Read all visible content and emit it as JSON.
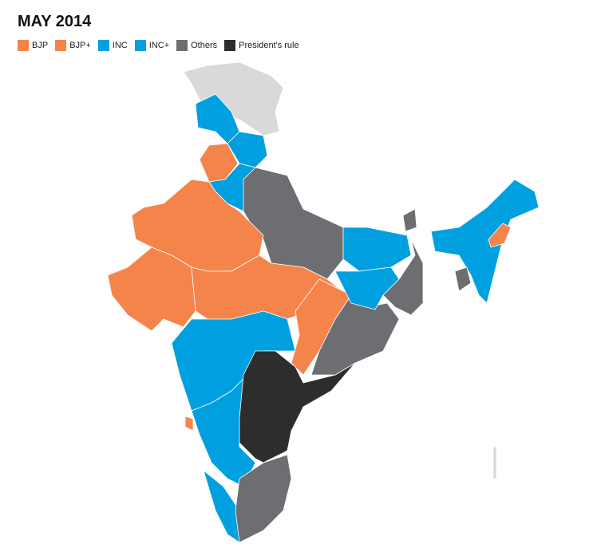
{
  "title": "MAY 2014",
  "legend": [
    {
      "label": "BJP",
      "color": "#f5844a"
    },
    {
      "label": "BJP+",
      "color": "#f5844a"
    },
    {
      "label": "INC",
      "color": "#00a0e0"
    },
    {
      "label": "INC+",
      "color": "#00a0e0"
    },
    {
      "label": "Others",
      "color": "#6d6e72"
    },
    {
      "label": "President's rule",
      "color": "#2d2d2d"
    }
  ]
}
